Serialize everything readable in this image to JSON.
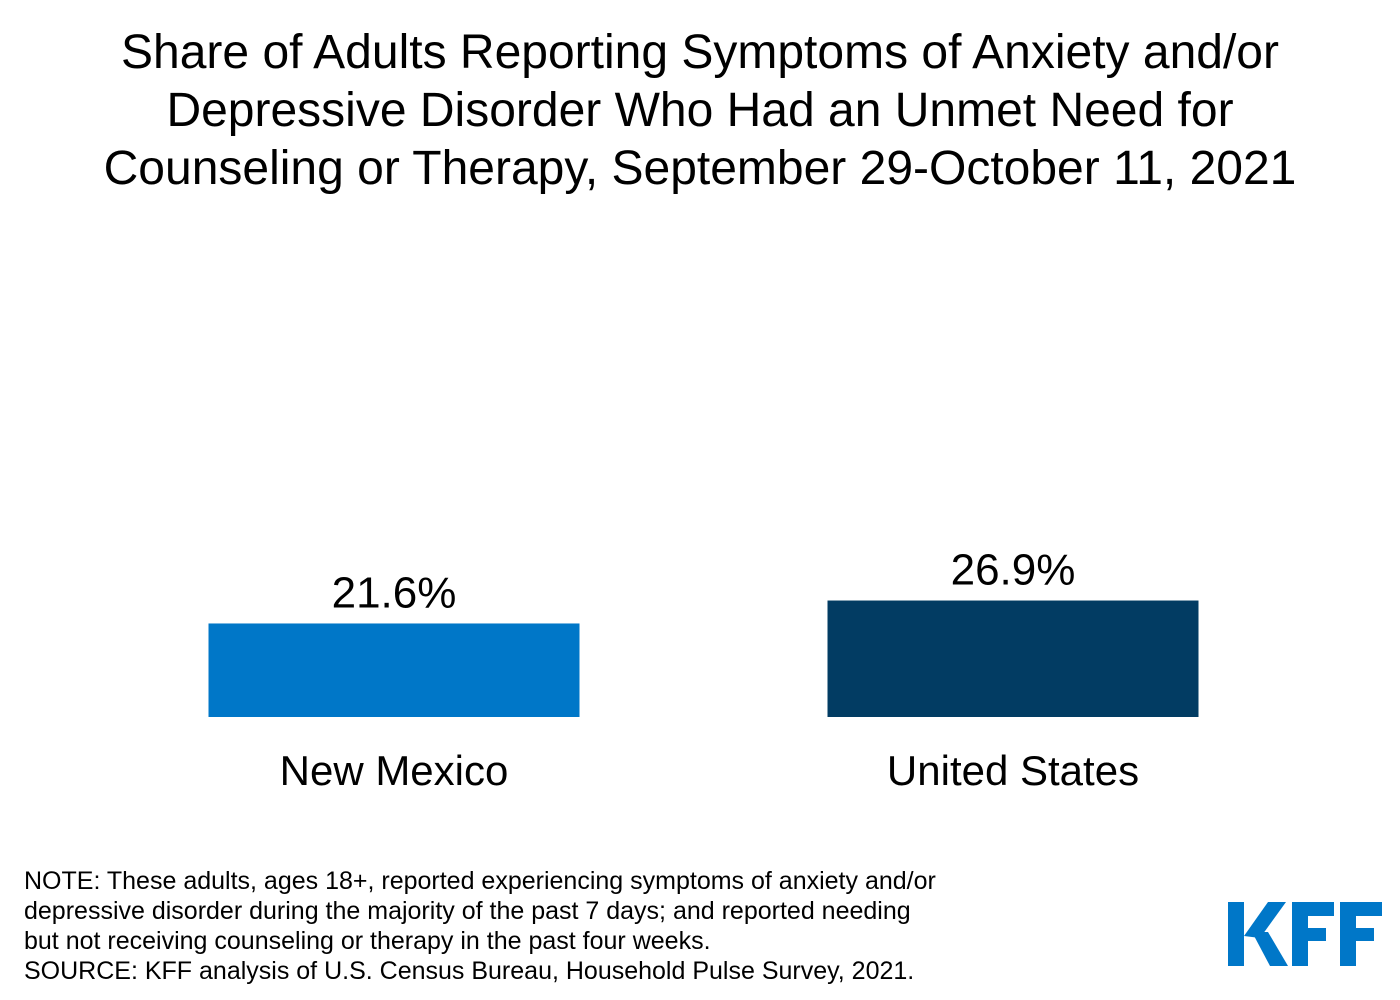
{
  "chart_data": {
    "type": "bar",
    "title_lines": [
      "Share of Adults Reporting Symptoms of Anxiety and/or",
      "Depressive Disorder Who Had an Unmet Need for",
      "Counseling or Therapy, September 29-October 11, 2021"
    ],
    "categories": [
      "New Mexico",
      "United States"
    ],
    "values": [
      21.6,
      26.9
    ],
    "value_labels": [
      "21.6%",
      "26.9%"
    ],
    "colors": [
      "#0077c8",
      "#023c63"
    ],
    "xlabel": "",
    "ylabel": "",
    "grid": false,
    "legend": "none"
  },
  "footnote": {
    "lines": [
      "NOTE: These adults, ages 18+, reported experiencing symptoms of anxiety and/or",
      "depressive disorder during the majority of the past 7 days; and reported needing",
      "but not receiving counseling or therapy in the past four weeks.",
      "SOURCE: KFF analysis of U.S. Census Bureau, Household Pulse Survey, 2021."
    ]
  },
  "logo": {
    "text": "KFF",
    "color": "#0077c8"
  }
}
